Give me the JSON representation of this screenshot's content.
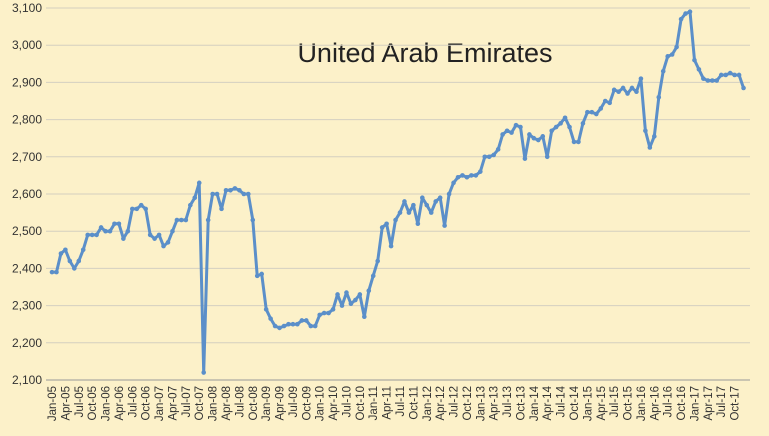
{
  "chart_data": {
    "type": "line",
    "title": "United Arab Emirates",
    "categories": [
      "Jan-05",
      null,
      null,
      "Apr-05",
      null,
      null,
      "Jul-05",
      null,
      null,
      "Oct-05",
      null,
      null,
      "Jan-06",
      null,
      null,
      "Apr-06",
      null,
      null,
      "Jul-06",
      null,
      null,
      "Oct-06",
      null,
      null,
      "Jan-07",
      null,
      null,
      "Apr-07",
      null,
      null,
      "Jul-07",
      null,
      null,
      "Oct-07",
      null,
      null,
      "Jan-08",
      null,
      null,
      "Apr-08",
      null,
      null,
      "Jul-08",
      null,
      null,
      "Oct-08",
      null,
      null,
      "Jan-09",
      null,
      null,
      "Apr-09",
      null,
      null,
      "Jul-09",
      null,
      null,
      "Oct-09",
      null,
      null,
      "Jan-10",
      null,
      null,
      "Apr-10",
      null,
      null,
      "Jul-10",
      null,
      null,
      "Oct-10",
      null,
      null,
      "Jan-11",
      null,
      null,
      "Apr-11",
      null,
      null,
      "Jul-11",
      null,
      null,
      "Oct-11",
      null,
      null,
      "Jan-12",
      null,
      null,
      "Apr-12",
      null,
      null,
      "Jul-12",
      null,
      null,
      "Oct-12",
      null,
      null,
      "Jan-13",
      null,
      null,
      "Apr-13",
      null,
      null,
      "Jul-13",
      null,
      null,
      "Oct-13",
      null,
      null,
      "Jan-14",
      null,
      null,
      "Apr-14",
      null,
      null,
      "Jul-14",
      null,
      null,
      "Oct-14",
      null,
      null,
      "Jan-15",
      null,
      null,
      "Apr-15",
      null,
      null,
      "Jul-15",
      null,
      null,
      "Oct-15",
      null,
      null,
      "Jan-16",
      null,
      null,
      "Apr-16",
      null,
      null,
      "Jul-16",
      null,
      null,
      "Oct-16",
      null,
      null,
      "Jan-17",
      null,
      null,
      "Apr-17",
      null,
      null,
      "Jul-17",
      null,
      null,
      "Oct-17",
      null,
      null
    ],
    "values": [
      2390,
      2390,
      2440,
      2450,
      2420,
      2400,
      2420,
      2450,
      2490,
      2490,
      2490,
      2510,
      2500,
      2500,
      2520,
      2520,
      2480,
      2500,
      2560,
      2560,
      2570,
      2560,
      2490,
      2480,
      2490,
      2460,
      2470,
      2500,
      2530,
      2530,
      2530,
      2570,
      2590,
      2630,
      2120,
      2530,
      2600,
      2600,
      2560,
      2610,
      2610,
      2615,
      2610,
      2600,
      2600,
      2530,
      2380,
      2385,
      2290,
      2265,
      2245,
      2240,
      2245,
      2250,
      2250,
      2250,
      2260,
      2260,
      2245,
      2245,
      2275,
      2280,
      2280,
      2290,
      2330,
      2300,
      2335,
      2305,
      2315,
      2330,
      2270,
      2340,
      2380,
      2420,
      2510,
      2520,
      2460,
      2530,
      2550,
      2580,
      2550,
      2570,
      2520,
      2590,
      2570,
      2550,
      2580,
      2590,
      2515,
      2600,
      2630,
      2645,
      2650,
      2645,
      2650,
      2650,
      2660,
      2700,
      2700,
      2705,
      2720,
      2760,
      2770,
      2765,
      2785,
      2780,
      2695,
      2760,
      2750,
      2745,
      2755,
      2700,
      2770,
      2780,
      2790,
      2805,
      2780,
      2740,
      2740,
      2790,
      2820,
      2820,
      2815,
      2830,
      2850,
      2845,
      2880,
      2875,
      2885,
      2870,
      2885,
      2875,
      2910,
      2770,
      2725,
      2755,
      2860,
      2930,
      2970,
      2975,
      2995,
      3070,
      3085,
      3090,
      2960,
      2935,
      2910,
      2905,
      2905,
      2905,
      2920,
      2920,
      2925,
      2920,
      2920,
      2885
    ],
    "color": "#5b8fc9",
    "ylim": [
      2100,
      3100
    ],
    "yticks": [
      {
        "value": 2100,
        "label": "2,100"
      },
      {
        "value": 2200,
        "label": "2,200"
      },
      {
        "value": 2300,
        "label": "2,300"
      },
      {
        "value": 2400,
        "label": "2,400"
      },
      {
        "value": 2500,
        "label": "2,500"
      },
      {
        "value": 2600,
        "label": "2,600"
      },
      {
        "value": 2700,
        "label": "2,700"
      },
      {
        "value": 2800,
        "label": "2,800"
      },
      {
        "value": 2900,
        "label": "2,900"
      },
      {
        "value": 3000,
        "label": "3,000"
      },
      {
        "value": 3100,
        "label": "3,100"
      }
    ],
    "grid": true
  }
}
